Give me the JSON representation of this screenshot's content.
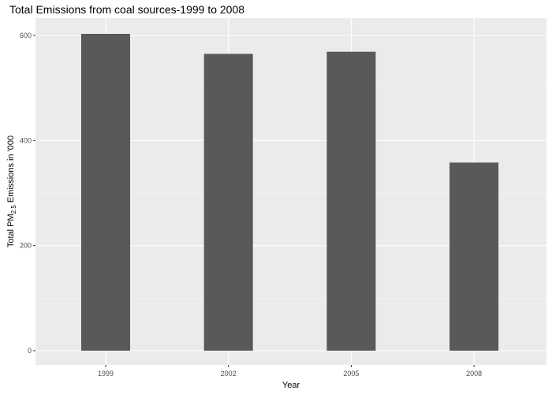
{
  "chart_data": {
    "type": "bar",
    "title": "Total Emissions from coal sources-1999 to 2008",
    "xlabel": "Year",
    "ylabel": {
      "prefix": "Total PM",
      "subscript": "2.5",
      "suffix": " Emissions in '000"
    },
    "categories": [
      "1999",
      "2002",
      "2005",
      "2008"
    ],
    "values": [
      603,
      565,
      569,
      358
    ],
    "ylim": [
      0,
      630
    ],
    "yticks": [
      0,
      200,
      400,
      600
    ],
    "grid": true,
    "colors": {
      "panel_background": "#ebebeb",
      "grid_major": "#ffffff",
      "grid_minor": "#f5f5f5",
      "bar_fill": "#595959",
      "tick_mark": "#333333"
    }
  }
}
